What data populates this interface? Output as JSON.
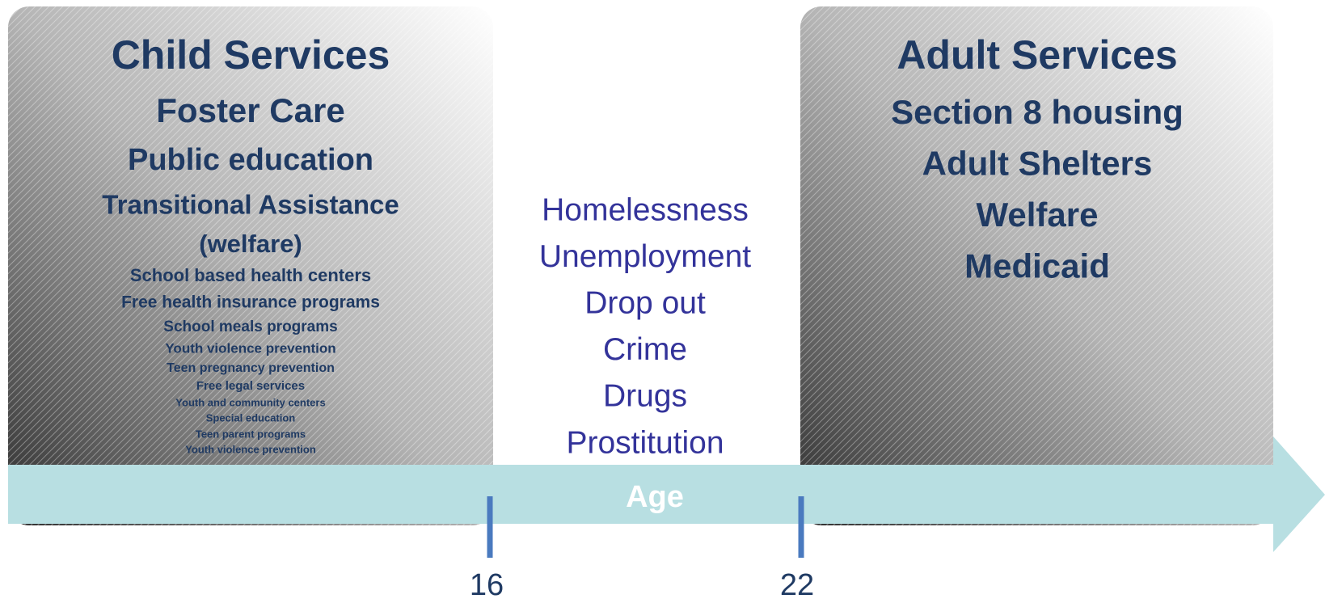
{
  "child_services": {
    "title": "Child Services",
    "items": [
      "Foster Care",
      "Public education",
      "Transitional Assistance",
      "(welfare)",
      "School based health centers",
      "Free health insurance programs",
      "School meals programs",
      "Youth violence prevention",
      "Teen pregnancy prevention",
      "Free legal services",
      "Youth and community centers",
      "Special education",
      "Teen parent programs",
      "Youth violence prevention"
    ]
  },
  "transition_risks": {
    "items": [
      "Homelessness",
      "Unemployment",
      "Drop out",
      "Crime",
      "Drugs",
      "Prostitution"
    ]
  },
  "adult_services": {
    "title": "Adult Services",
    "items": [
      "Section 8 housing",
      "Adult Shelters",
      "Welfare",
      "Medicaid"
    ]
  },
  "axis": {
    "label": "Age",
    "ticks": [
      16,
      22
    ]
  }
}
